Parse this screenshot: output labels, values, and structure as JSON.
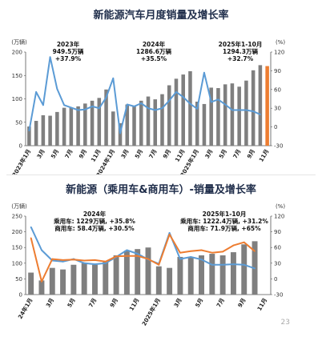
{
  "page_number": "23",
  "chart_data": [
    {
      "type": "bar",
      "title": "新能源汽车月度销量及增长率",
      "left_unit": "(万辆)",
      "right_unit": "(%)",
      "ylim_left": [
        0,
        200
      ],
      "yticks_left": [
        0,
        50,
        100,
        150,
        200
      ],
      "ylim_right": [
        -30,
        120
      ],
      "yticks_right": [
        -30,
        0,
        30,
        60,
        90,
        120
      ],
      "x_tick_labels": [
        "2023年1月",
        "3月",
        "5月",
        "7月",
        "9月",
        "11月",
        "2024年1月",
        "3月",
        "5月",
        "7月",
        "9月",
        "11月",
        "2025年1月",
        "3月",
        "5月",
        "7月",
        "9月",
        "11月"
      ],
      "x_tick_every": 2,
      "categories": [
        "2023-01",
        "2023-02",
        "2023-03",
        "2023-04",
        "2023-05",
        "2023-06",
        "2023-07",
        "2023-08",
        "2023-09",
        "2023-10",
        "2023-11",
        "2023-12",
        "2024-01",
        "2024-02",
        "2024-03",
        "2024-04",
        "2024-05",
        "2024-06",
        "2024-07",
        "2024-08",
        "2024-09",
        "2024-10",
        "2024-11",
        "2024-12",
        "2025-01",
        "2025-02",
        "2025-03",
        "2025-04",
        "2025-05",
        "2025-06",
        "2025-07",
        "2025-08",
        "2025-09",
        "2025-10",
        "2025-11"
      ],
      "series": [
        {
          "kind": "bar",
          "axis": "left",
          "color": "#7f7f7f",
          "values": [
            41,
            53,
            65,
            64,
            72,
            81,
            81,
            84,
            90,
            96,
            102,
            120,
            73,
            48,
            88,
            85,
            96,
            105,
            99,
            110,
            129,
            143,
            152,
            159,
            94,
            89,
            124,
            123,
            131,
            133,
            126,
            139,
            161,
            172,
            null
          ]
        },
        {
          "kind": "bar",
          "axis": "left",
          "color": "#ed7d31",
          "values": [
            null,
            null,
            null,
            null,
            null,
            null,
            null,
            null,
            null,
            null,
            null,
            null,
            null,
            null,
            null,
            null,
            null,
            null,
            null,
            null,
            null,
            null,
            null,
            null,
            null,
            null,
            null,
            null,
            null,
            null,
            null,
            null,
            null,
            null,
            170
          ]
        },
        {
          "kind": "line",
          "axis": "right",
          "color": "#5b9bd5",
          "values": [
            -6,
            56,
            35,
            112,
            61,
            35,
            31,
            27,
            28,
            33,
            30,
            47,
            78,
            -10,
            36,
            33,
            38,
            30,
            27,
            30,
            42,
            56,
            48,
            37,
            29,
            87,
            40,
            44,
            36,
            27,
            27,
            27,
            25,
            20,
            null
          ]
        }
      ],
      "annotations": [
        {
          "year": "2023年",
          "total": "949.5万辆",
          "growth": "+37.9%"
        },
        {
          "year": "2024年",
          "total": "1286.6万辆",
          "growth": "+35.5%"
        },
        {
          "year": "2025年1-10月",
          "total": "1294.3万辆",
          "growth": "+32.7%"
        }
      ]
    },
    {
      "type": "bar",
      "title": "新能源（乘用车&商用车）-销量及增长率",
      "left_unit": "(万辆)",
      "right_unit": "(%)",
      "ylim_left": [
        0,
        250
      ],
      "yticks_left": [
        0,
        50,
        100,
        150,
        200,
        250
      ],
      "ylim_right": [
        -30,
        120
      ],
      "yticks_right": [
        -30,
        0,
        30,
        60,
        90,
        120
      ],
      "x_tick_labels": [
        "24年1月",
        "3月",
        "5月",
        "7月",
        "9月",
        "11月",
        "2025年1月",
        "3月",
        "5月",
        "7月",
        "9月",
        "11月"
      ],
      "x_tick_every": 2,
      "categories": [
        "2024-01",
        "2024-02",
        "2024-03",
        "2024-04",
        "2024-05",
        "2024-06",
        "2024-07",
        "2024-08",
        "2024-09",
        "2024-10",
        "2024-11",
        "2024-12",
        "2025-01",
        "2025-02",
        "2025-03",
        "2025-04",
        "2025-05",
        "2025-06",
        "2025-07",
        "2025-08",
        "2025-09",
        "2025-10",
        "2025-11"
      ],
      "series": [
        {
          "kind": "bar",
          "axis": "left",
          "color": "#7f7f7f",
          "values": [
            70,
            45,
            85,
            80,
            95,
            100,
            95,
            105,
            125,
            140,
            145,
            150,
            90,
            85,
            120,
            120,
            125,
            130,
            125,
            135,
            160,
            170,
            null
          ]
        },
        {
          "kind": "line",
          "axis": "right",
          "color": "#5b9bd5",
          "name": "乘用车",
          "values": [
            99,
            55,
            35,
            33,
            38,
            30,
            28,
            30,
            42,
            55,
            48,
            37,
            29,
            88,
            38,
            42,
            37,
            27,
            27,
            28,
            27,
            20,
            null
          ]
        },
        {
          "kind": "line",
          "axis": "right",
          "color": "#ed7d31",
          "name": "商用车",
          "values": [
            78,
            -5,
            38,
            36,
            37,
            35,
            36,
            33,
            43,
            44,
            44,
            38,
            27,
            85,
            50,
            53,
            55,
            50,
            52,
            64,
            70,
            53,
            null
          ]
        }
      ],
      "annotations": [
        {
          "year": "2024年",
          "passenger": "乘用车: 1229万辆, +35.8%",
          "commercial": "商用车: 58.4万辆, +30.5%"
        },
        {
          "year": "2025年1-10月",
          "passenger": "乘用车: 1222.4万辆, +31.2%",
          "commercial": "商用车: 71.9万辆, +65%"
        }
      ]
    }
  ]
}
